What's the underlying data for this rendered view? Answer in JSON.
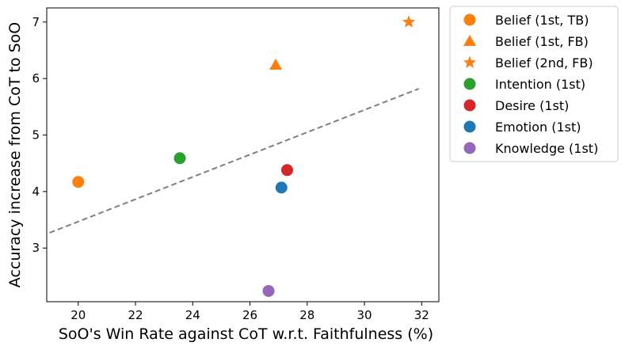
{
  "chart_data": {
    "type": "scatter",
    "title": "",
    "xlabel": "SoO's Win Rate against CoT w.r.t. Faithfulness (%)",
    "ylabel": "Accuracy increase from CoT to SoO",
    "xlim": [
      18.9,
      32.6
    ],
    "ylim": [
      2.05,
      7.25
    ],
    "x_ticks": [
      20,
      22,
      24,
      26,
      28,
      30,
      32
    ],
    "y_ticks": [
      3,
      4,
      5,
      6,
      7
    ],
    "grid": false,
    "legend_position": "outside-top-right",
    "series": [
      {
        "name": "Belief (1st, TB)",
        "marker": "circle",
        "color": "#ff7f0e",
        "points": [
          {
            "x": 20.0,
            "y": 4.17
          }
        ]
      },
      {
        "name": "Belief (1st, FB)",
        "marker": "triangle",
        "color": "#ff7f0e",
        "points": [
          {
            "x": 26.9,
            "y": 6.24
          }
        ]
      },
      {
        "name": "Belief (2nd, FB)",
        "marker": "star",
        "color": "#ff7f0e",
        "points": [
          {
            "x": 31.55,
            "y": 7.0
          }
        ]
      },
      {
        "name": "Intention (1st)",
        "marker": "circle",
        "color": "#2ca02c",
        "points": [
          {
            "x": 23.55,
            "y": 4.59
          }
        ]
      },
      {
        "name": "Desire (1st)",
        "marker": "circle",
        "color": "#d62728",
        "points": [
          {
            "x": 27.3,
            "y": 4.38
          }
        ]
      },
      {
        "name": "Emotion (1st)",
        "marker": "circle",
        "color": "#1f77b4",
        "points": [
          {
            "x": 27.1,
            "y": 4.07
          }
        ]
      },
      {
        "name": "Knowledge (1st)",
        "marker": "circle",
        "color": "#9467bd",
        "points": [
          {
            "x": 26.65,
            "y": 2.24
          }
        ]
      }
    ],
    "trend_line": {
      "style": "dashed",
      "color": "#808080",
      "start": {
        "x": 19.0,
        "y": 3.27
      },
      "end": {
        "x": 31.9,
        "y": 5.82
      }
    }
  }
}
